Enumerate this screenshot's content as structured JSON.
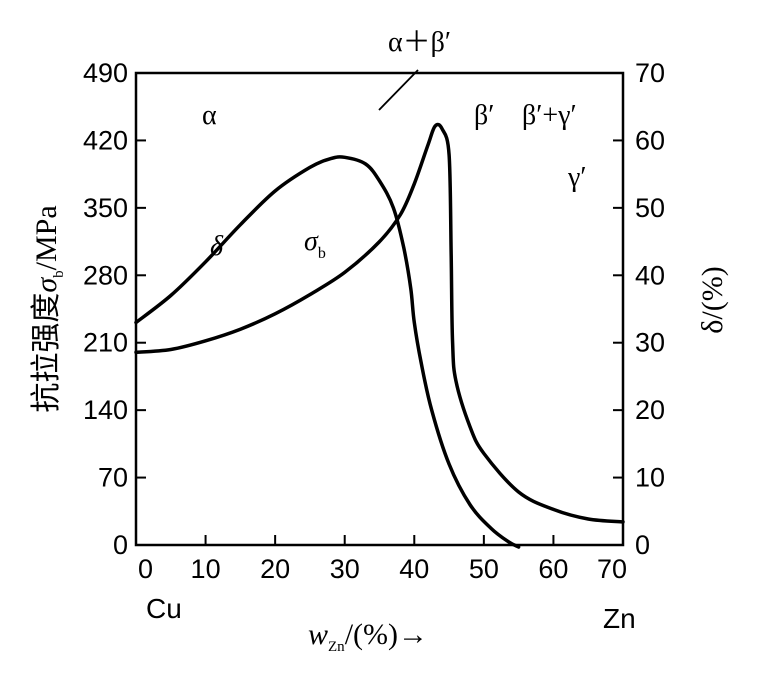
{
  "chart_data": {
    "type": "line",
    "x": {
      "label": "w",
      "label_sub": "Zn",
      "label_suffix": "/(%)→",
      "ticks": [
        "0",
        "10",
        "20",
        "30",
        "40",
        "50",
        "60",
        "70"
      ],
      "range": [
        0,
        70
      ],
      "left_end_label": "Cu",
      "right_end_label": "Zn"
    },
    "y_left": {
      "label_cn": "抗拉强度",
      "label_symbol": "σ",
      "label_sub": "b",
      "label_suffix": "/MPa",
      "ticks": [
        "0",
        "70",
        "140",
        "210",
        "280",
        "350",
        "420",
        "490"
      ],
      "range": [
        0,
        490
      ]
    },
    "y_right": {
      "label": "δ/(%)",
      "ticks": [
        "0",
        "10",
        "20",
        "30",
        "40",
        "50",
        "60",
        "70"
      ],
      "range": [
        0,
        70
      ]
    },
    "series": [
      {
        "name": "σb",
        "axis": "left",
        "points": [
          [
            0,
            200
          ],
          [
            5,
            203
          ],
          [
            10,
            212
          ],
          [
            15,
            224
          ],
          [
            20,
            240
          ],
          [
            25,
            260
          ],
          [
            30,
            283
          ],
          [
            35,
            315
          ],
          [
            38,
            343
          ],
          [
            40,
            375
          ],
          [
            42,
            416
          ],
          [
            43,
            435
          ],
          [
            44,
            432
          ],
          [
            45,
            405
          ],
          [
            45.3,
            300
          ],
          [
            45.5,
            210
          ],
          [
            46,
            170
          ],
          [
            48,
            123
          ],
          [
            50,
            95
          ],
          [
            55,
            55
          ],
          [
            60,
            37
          ],
          [
            65,
            27
          ],
          [
            70,
            24
          ]
        ]
      },
      {
        "name": "δ",
        "axis": "right",
        "points": [
          [
            0,
            33
          ],
          [
            5,
            37
          ],
          [
            10,
            42
          ],
          [
            15,
            47.5
          ],
          [
            20,
            52.5
          ],
          [
            25,
            56
          ],
          [
            28,
            57.3
          ],
          [
            30,
            57.5
          ],
          [
            33,
            56.5
          ],
          [
            35,
            54
          ],
          [
            37,
            50
          ],
          [
            38.5,
            44
          ],
          [
            39.5,
            38
          ],
          [
            40,
            33
          ],
          [
            41,
            27
          ],
          [
            42.5,
            20
          ],
          [
            45,
            12
          ],
          [
            48,
            6
          ],
          [
            51,
            2.5
          ],
          [
            53.5,
            0.5
          ],
          [
            55,
            -0.3
          ]
        ]
      }
    ],
    "phase_labels": [
      "α",
      "α＋β′",
      "β′",
      "β′+γ′",
      "γ′"
    ],
    "curve_labels": {
      "delta": "δ",
      "sigma": "σ",
      "sigma_sub": "b"
    }
  }
}
